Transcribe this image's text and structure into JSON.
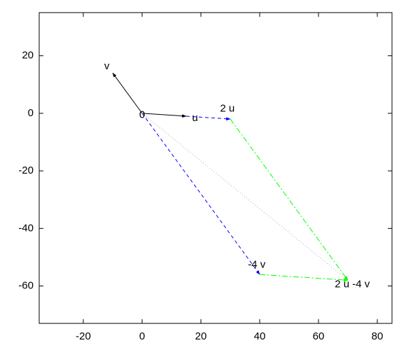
{
  "chart_data": {
    "type": "vector",
    "xlim": [
      -35,
      85
    ],
    "ylim": [
      -73,
      35
    ],
    "xticks": [
      -20,
      0,
      20,
      40,
      60,
      80
    ],
    "yticks": [
      -60,
      -40,
      -20,
      0,
      20
    ],
    "segments": [
      {
        "x": [
          0,
          -10
        ],
        "y": [
          0,
          14
        ],
        "color": "#000000",
        "style": "solid",
        "arrow": true
      },
      {
        "x": [
          0,
          15
        ],
        "y": [
          0,
          -1
        ],
        "color": "#000000",
        "style": "solid",
        "arrow": true
      },
      {
        "x": [
          15,
          30
        ],
        "y": [
          -1,
          -2
        ],
        "color": "#0000ff",
        "style": "dashed",
        "arrow": true
      },
      {
        "x": [
          0,
          40
        ],
        "y": [
          0,
          -56
        ],
        "color": "#0000ff",
        "style": "dashed",
        "arrow": true
      },
      {
        "x": [
          30,
          70
        ],
        "y": [
          -2,
          -58
        ],
        "color": "#00ff00",
        "style": "dashdot",
        "arrow": true
      },
      {
        "x": [
          40,
          70
        ],
        "y": [
          -56,
          -58
        ],
        "color": "#00ff00",
        "style": "dashdot",
        "arrow": true
      },
      {
        "x": [
          0,
          70
        ],
        "y": [
          0,
          -58
        ],
        "color": "#aaaaaa",
        "style": "dotted",
        "arrow": false
      }
    ],
    "annotations": [
      {
        "text": "v",
        "x": -12,
        "y": 16.3
      },
      {
        "text": "u",
        "x": 18,
        "y": -1.7
      },
      {
        "text": "2 u",
        "x": 29,
        "y": 1.5
      },
      {
        "text": "-4 v",
        "x": 39,
        "y": -52.7
      },
      {
        "text": "2 u -4 v",
        "x": 71.5,
        "y": -59.5
      },
      {
        "text": "0",
        "x": 0,
        "y": -0.7
      }
    ]
  }
}
